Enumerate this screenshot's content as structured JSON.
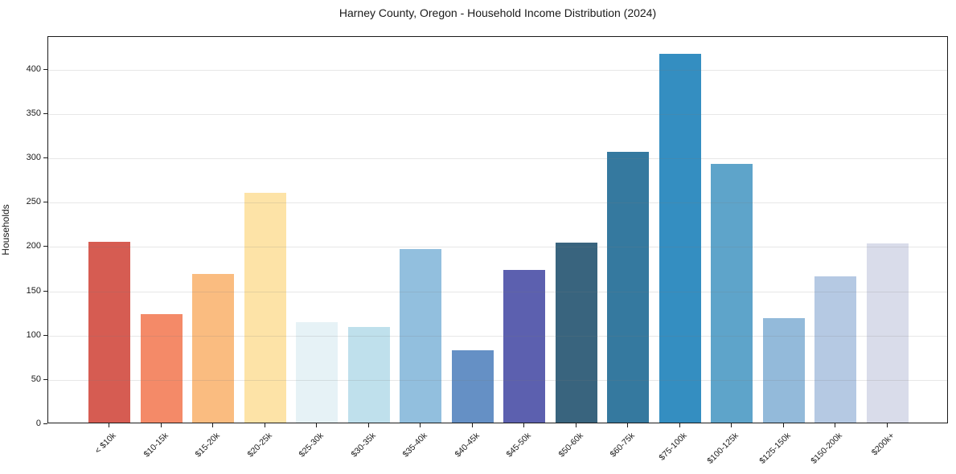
{
  "figure": {
    "title": "Harney County, Oregon - Household Income Distribution (2024)"
  },
  "chart_data": {
    "type": "bar",
    "title": "Harney County, Oregon - Household Income Distribution (2024)",
    "xlabel": "",
    "ylabel": "Households",
    "categories": [
      "< $10k",
      "$10-15k",
      "$15-20k",
      "$20-25k",
      "$25-30k",
      "$30-35k",
      "$35-40k",
      "$40-45k",
      "$45-50k",
      "$50-60k",
      "$60-75k",
      "$75-100k",
      "$100-125k",
      "$125-150k",
      "$150-200k",
      "$200k+"
    ],
    "values": [
      204,
      122,
      168,
      259,
      113,
      108,
      196,
      82,
      172,
      203,
      306,
      416,
      292,
      118,
      165,
      202
    ],
    "bar_colors": [
      "#d65c52",
      "#f48a68",
      "#fabc80",
      "#fde3a7",
      "#e6f2f6",
      "#bfe0ec",
      "#92bfde",
      "#6590c5",
      "#5c60af",
      "#39647e",
      "#35799f",
      "#348ec1",
      "#5ea4ca",
      "#93bada",
      "#b5c9e3",
      "#d9dcea"
    ],
    "yticks": [
      0,
      50,
      100,
      150,
      200,
      250,
      300,
      350,
      400
    ],
    "ylim": [
      0,
      437
    ],
    "grid": "horizontal-gridlines-over-bars",
    "legend": "none",
    "axis_color": "#1a1a1a",
    "background_color": "#ffffff"
  }
}
